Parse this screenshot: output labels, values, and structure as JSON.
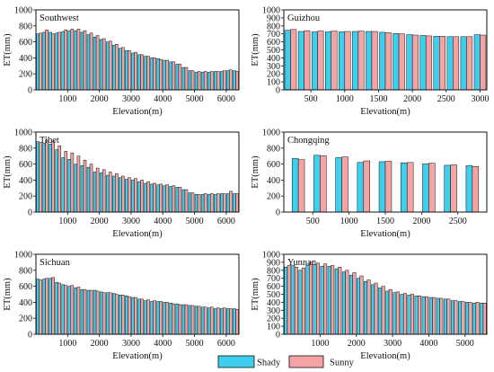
{
  "colors": {
    "shady": "#3ecfee",
    "sunny": "#f5a3a3",
    "outline": "#111111"
  },
  "legend": {
    "items": [
      {
        "name": "Shady",
        "color": "#3ecfee"
      },
      {
        "name": "Sunny",
        "color": "#f5a3a3"
      }
    ]
  },
  "chart_data": [
    {
      "type": "bar",
      "title": "Southwest",
      "xlabel": "Elevation(m)",
      "ylabel": "ET(mm)",
      "xlim": [
        0,
        6400
      ],
      "ylim": [
        0,
        1000
      ],
      "xticks": [
        1000,
        2000,
        3000,
        4000,
        5000,
        6000
      ],
      "yticks": [
        0,
        200,
        400,
        600,
        800,
        1000
      ],
      "bin_width": 200,
      "x": [
        100,
        300,
        500,
        700,
        900,
        1100,
        1300,
        1500,
        1700,
        1900,
        2100,
        2300,
        2500,
        2700,
        2900,
        3100,
        3300,
        3500,
        3700,
        3900,
        4100,
        4300,
        4500,
        4700,
        4900,
        5100,
        5300,
        5500,
        5700,
        5900,
        6100,
        6300
      ],
      "series": [
        {
          "name": "Shady",
          "values": [
            700,
            720,
            720,
            710,
            730,
            740,
            740,
            720,
            690,
            660,
            630,
            600,
            560,
            520,
            490,
            460,
            440,
            420,
            400,
            390,
            370,
            350,
            320,
            280,
            240,
            220,
            220,
            220,
            230,
            230,
            240,
            240
          ]
        },
        {
          "name": "Sunny",
          "values": [
            710,
            750,
            700,
            720,
            750,
            760,
            760,
            740,
            710,
            680,
            640,
            610,
            570,
            530,
            490,
            470,
            440,
            420,
            400,
            380,
            370,
            350,
            320,
            280,
            240,
            230,
            230,
            230,
            230,
            240,
            250,
            230
          ]
        }
      ]
    },
    {
      "type": "bar",
      "title": "Guizhou",
      "xlabel": "Elevation(m)",
      "ylabel": "ET(mm)",
      "xlim": [
        100,
        3100
      ],
      "ylim": [
        0,
        1000
      ],
      "xticks": [
        500,
        1000,
        1500,
        2000,
        2500,
        3000
      ],
      "yticks": [
        0,
        100,
        200,
        300,
        400,
        500,
        600,
        700,
        800,
        900,
        1000
      ],
      "bin_width": 200,
      "x": [
        200,
        400,
        600,
        800,
        1000,
        1200,
        1400,
        1600,
        1800,
        2000,
        2200,
        2400,
        2600,
        2800,
        3000
      ],
      "series": [
        {
          "name": "Shady",
          "values": [
            745,
            730,
            725,
            725,
            725,
            730,
            730,
            720,
            705,
            690,
            680,
            670,
            665,
            665,
            690
          ]
        },
        {
          "name": "Sunny",
          "values": [
            755,
            740,
            735,
            735,
            730,
            735,
            730,
            715,
            700,
            685,
            675,
            670,
            665,
            665,
            685
          ]
        }
      ]
    },
    {
      "type": "bar",
      "title": "Tibet",
      "xlabel": "Elevation(m)",
      "ylabel": "ET(mm)",
      "xlim": [
        0,
        6400
      ],
      "ylim": [
        0,
        1000
      ],
      "xticks": [
        1000,
        2000,
        3000,
        4000,
        5000,
        6000
      ],
      "yticks": [
        0,
        200,
        400,
        600,
        800,
        1000
      ],
      "bin_width": 200,
      "x": [
        100,
        300,
        500,
        700,
        900,
        1100,
        1300,
        1500,
        1700,
        1900,
        2100,
        2300,
        2500,
        2700,
        2900,
        3100,
        3300,
        3500,
        3700,
        3900,
        4100,
        4300,
        4500,
        4700,
        4900,
        5100,
        5300,
        5500,
        5700,
        5900,
        6100,
        6300
      ],
      "series": [
        {
          "name": "Shady",
          "values": [
            880,
            860,
            850,
            780,
            680,
            660,
            600,
            580,
            560,
            500,
            490,
            460,
            450,
            430,
            410,
            400,
            380,
            360,
            350,
            340,
            330,
            320,
            310,
            280,
            240,
            220,
            220,
            220,
            220,
            230,
            230,
            230
          ]
        },
        {
          "name": "Sunny",
          "values": [
            870,
            900,
            880,
            830,
            760,
            740,
            700,
            650,
            600,
            550,
            530,
            500,
            480,
            450,
            430,
            420,
            400,
            380,
            360,
            350,
            340,
            330,
            310,
            280,
            240,
            220,
            230,
            230,
            230,
            230,
            260,
            230
          ]
        }
      ]
    },
    {
      "type": "bar",
      "title": "Chongqing",
      "xlabel": "Elevation(m)",
      "ylabel": "ET(mm)",
      "xlim": [
        100,
        2900
      ],
      "ylim": [
        0,
        1000
      ],
      "xticks": [
        500,
        1000,
        1500,
        2000,
        2500
      ],
      "yticks": [
        0,
        200,
        400,
        600,
        800,
        1000
      ],
      "bin_width": 200,
      "x": [
        300,
        600,
        900,
        1200,
        1500,
        1800,
        2100,
        2400,
        2700
      ],
      "series": [
        {
          "name": "Shady",
          "values": [
            670,
            710,
            680,
            620,
            630,
            615,
            605,
            585,
            580
          ]
        },
        {
          "name": "Sunny",
          "values": [
            655,
            705,
            690,
            640,
            635,
            620,
            610,
            590,
            570
          ]
        }
      ]
    },
    {
      "type": "bar",
      "title": "Sichuan",
      "xlabel": "Elevation(m)",
      "ylabel": "ET(mm)",
      "xlim": [
        0,
        6400
      ],
      "ylim": [
        0,
        1000
      ],
      "xticks": [
        1000,
        2000,
        3000,
        4000,
        5000,
        6000
      ],
      "yticks": [
        0,
        200,
        400,
        600,
        800,
        1000
      ],
      "bin_width": 200,
      "x": [
        100,
        300,
        500,
        700,
        900,
        1100,
        1300,
        1500,
        1700,
        1900,
        2100,
        2300,
        2500,
        2700,
        2900,
        3100,
        3300,
        3500,
        3700,
        3900,
        4100,
        4300,
        4500,
        4700,
        4900,
        5100,
        5300,
        5500,
        5700,
        5900,
        6100,
        6300
      ],
      "series": [
        {
          "name": "Shady",
          "values": [
            690,
            690,
            700,
            650,
            620,
            600,
            580,
            560,
            550,
            550,
            530,
            520,
            510,
            490,
            480,
            460,
            440,
            420,
            410,
            410,
            400,
            390,
            380,
            370,
            360,
            350,
            340,
            330,
            320,
            320,
            320,
            320
          ]
        },
        {
          "name": "Sunny",
          "values": [
            680,
            700,
            710,
            640,
            610,
            610,
            590,
            560,
            550,
            540,
            520,
            520,
            500,
            490,
            470,
            460,
            440,
            430,
            420,
            410,
            400,
            380,
            370,
            370,
            360,
            350,
            340,
            340,
            330,
            330,
            320,
            310
          ]
        }
      ]
    },
    {
      "type": "bar",
      "title": "Yunnan",
      "xlabel": "Elevation(m)",
      "ylabel": "ET(mm)",
      "xlim": [
        0,
        5600
      ],
      "ylim": [
        0,
        1000
      ],
      "xticks": [
        1000,
        2000,
        3000,
        4000,
        5000
      ],
      "yticks": [
        0,
        100,
        200,
        300,
        400,
        500,
        600,
        700,
        800,
        900,
        1000
      ],
      "bin_width": 200,
      "x": [
        100,
        300,
        500,
        700,
        900,
        1100,
        1300,
        1500,
        1700,
        1900,
        2100,
        2300,
        2500,
        2700,
        2900,
        3100,
        3300,
        3500,
        3700,
        3900,
        4100,
        4300,
        4500,
        4700,
        4900,
        5100,
        5300,
        5500
      ],
      "series": [
        {
          "name": "Shady",
          "values": [
            840,
            860,
            800,
            860,
            870,
            850,
            850,
            820,
            780,
            740,
            700,
            660,
            620,
            580,
            540,
            520,
            500,
            490,
            480,
            470,
            460,
            450,
            440,
            420,
            410,
            400,
            390,
            390
          ]
        },
        {
          "name": "Sunny",
          "values": [
            860,
            840,
            830,
            900,
            890,
            880,
            860,
            840,
            800,
            770,
            730,
            680,
            640,
            600,
            560,
            530,
            510,
            500,
            480,
            470,
            460,
            450,
            440,
            420,
            410,
            400,
            400,
            390
          ]
        }
      ]
    }
  ]
}
